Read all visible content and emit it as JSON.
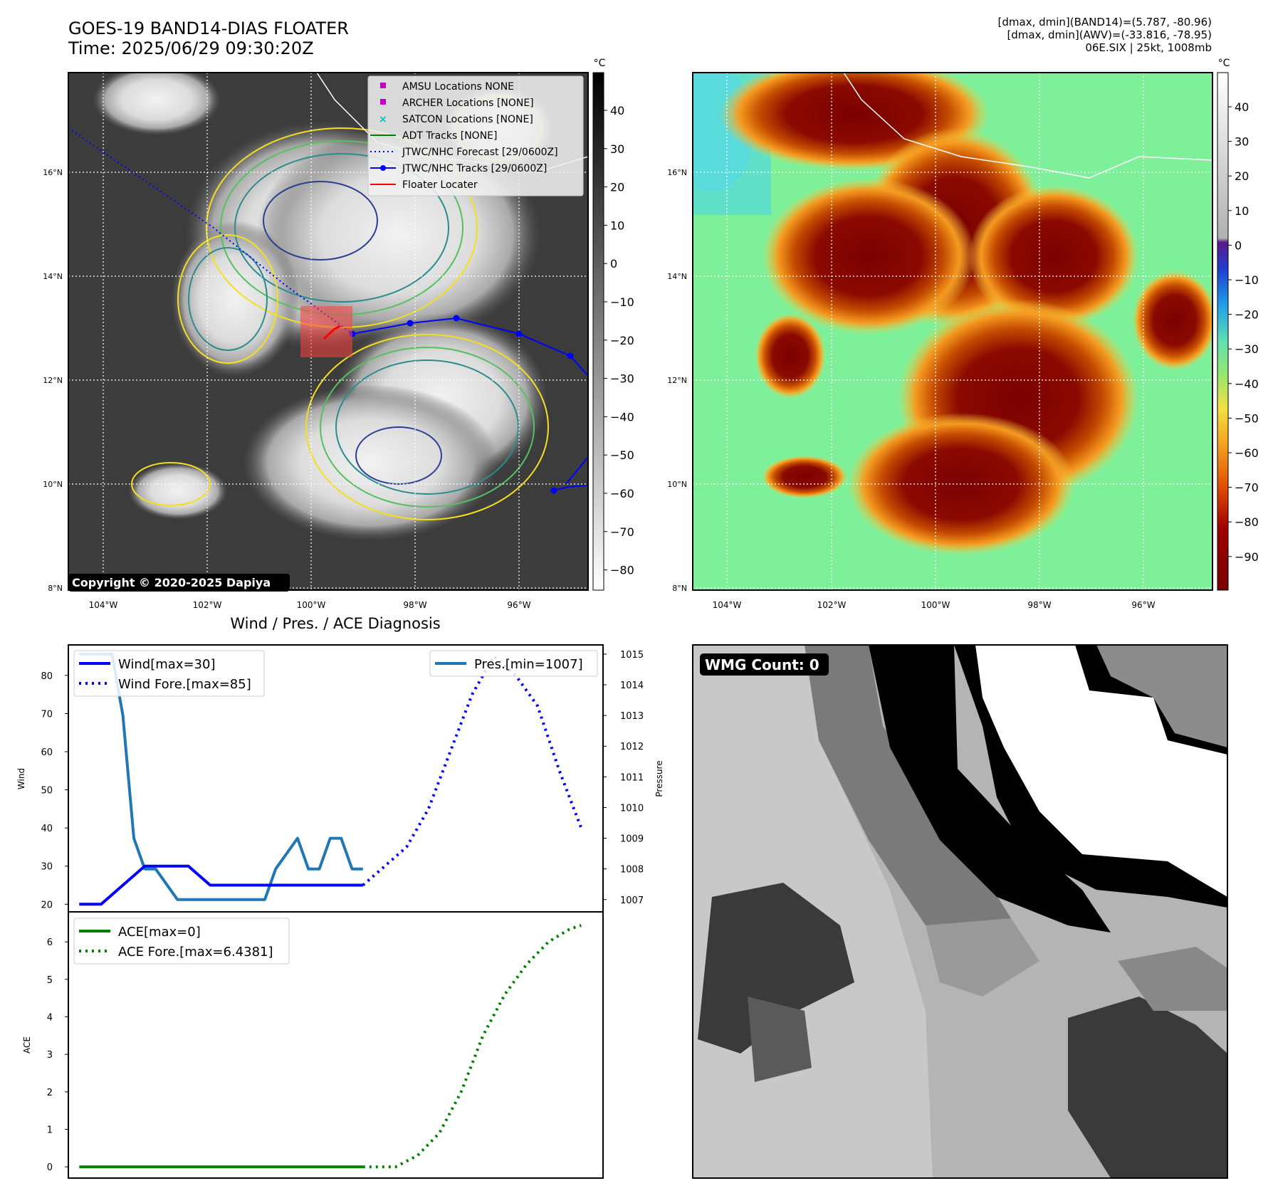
{
  "header": {
    "title_line1": "GOES-19 BAND14-DIAS FLOATER",
    "title_line2": "Time: 2025/06/29 09:30:20Z",
    "info_line1": "[dmax, dmin](BAND14)=(5.787, -80.96)",
    "info_line2": "[dmax, dmin](AWV)=(-33.816, -78.95)",
    "info_line3": "06E.SIX | 25kt, 1008mb"
  },
  "maps": {
    "lon_ticks": [
      "104°W",
      "102°W",
      "100°W",
      "98°W",
      "96°W"
    ],
    "lat_ticks": [
      "16°N",
      "14°N",
      "12°N",
      "10°N",
      "8°N"
    ],
    "copyright": "Copyright © 2020-2025 Dapiya",
    "legend": [
      {
        "label": "AMSU Locations NONE",
        "marker": "square",
        "color": "#c000c0"
      },
      {
        "label": "ARCHER Locations [NONE]",
        "marker": "square",
        "color": "#c000c0"
      },
      {
        "label": "SATCON Locations [NONE]",
        "marker": "x",
        "color": "#00bfbf"
      },
      {
        "label": "ADT Tracks [NONE]",
        "marker": "line",
        "color": "#008000"
      },
      {
        "label": "JTWC/NHC Forecast [29/0600Z]",
        "marker": "dotted",
        "color": "#0000ff"
      },
      {
        "label": "JTWC/NHC Tracks [29/0600Z]",
        "marker": "line-dot",
        "color": "#0000ff"
      },
      {
        "label": "Floater Locater",
        "marker": "line",
        "color": "#ff0000"
      }
    ],
    "colorbar_unit": "°C",
    "colorbar_gray_ticks": [
      "40",
      "30",
      "20",
      "10",
      "0",
      "−10",
      "−20",
      "−30",
      "−40",
      "−50",
      "−60",
      "−70",
      "−80"
    ],
    "colorbar_color_ticks": [
      "40",
      "30",
      "20",
      "10",
      "0",
      "−10",
      "−20",
      "−30",
      "−40",
      "−50",
      "−60",
      "−70",
      "−80",
      "−90"
    ]
  },
  "diagnosis": {
    "title": "Wind / Pres. / ACE Diagnosis",
    "wind_ylabel": "Wind",
    "pres_ylabel": "Pressure",
    "ace_ylabel": "ACE",
    "legend_wind": "Wind[max=30]",
    "legend_wind_fore": "Wind Fore.[max=85]",
    "legend_pres": "Pres.[min=1007]",
    "legend_ace": "ACE[max=0]",
    "legend_ace_fore": "ACE Fore.[max=6.4381]"
  },
  "wmg": {
    "label": "WMG Count: 0"
  },
  "chart_data": [
    {
      "type": "line",
      "title": "Wind / Pres. / ACE Diagnosis",
      "ylabel": "Wind",
      "ylim": [
        18,
        88
      ],
      "y_ticks": [
        20,
        30,
        40,
        50,
        60,
        70,
        80
      ],
      "xlim": [
        -1,
        48
      ],
      "colors": {
        "wind": "#0000ff",
        "pressure": "#1f77b4"
      },
      "series": [
        {
          "name": "Wind[max=30]",
          "style": "solid",
          "x": [
            0,
            2,
            4,
            6,
            8,
            10,
            12,
            14,
            16,
            18,
            20,
            22,
            24,
            26
          ],
          "values": [
            20,
            20,
            25,
            30,
            30,
            30,
            25,
            25,
            25,
            25,
            25,
            25,
            25,
            25
          ]
        },
        {
          "name": "Wind Fore.[max=85]",
          "style": "dotted",
          "x": [
            26,
            28,
            30,
            32,
            34,
            36,
            38,
            40,
            42,
            44,
            46
          ],
          "values": [
            25,
            30,
            35,
            45,
            60,
            75,
            85,
            80,
            72,
            55,
            40
          ]
        }
      ]
    },
    {
      "type": "line",
      "ylabel": "Pressure",
      "ylim": [
        1006.6,
        1015.3
      ],
      "y_ticks": [
        1007,
        1008,
        1009,
        1010,
        1011,
        1012,
        1013,
        1014,
        1015
      ],
      "xlim": [
        -1,
        48
      ],
      "series": [
        {
          "name": "Pres.[min=1007]",
          "style": "solid",
          "x": [
            0,
            3,
            4,
            5,
            6,
            7,
            9,
            11,
            13,
            15,
            17,
            18,
            20,
            21,
            22,
            23,
            24,
            25,
            26
          ],
          "values": [
            1015,
            1015,
            1013,
            1009,
            1008,
            1008,
            1007,
            1007,
            1007,
            1007,
            1007,
            1008,
            1009,
            1008,
            1008,
            1009,
            1009,
            1008,
            1008
          ]
        }
      ]
    },
    {
      "type": "line",
      "ylabel": "ACE",
      "ylim": [
        -0.3,
        6.8
      ],
      "y_ticks": [
        0,
        1,
        2,
        3,
        4,
        5,
        6
      ],
      "xlim": [
        -1,
        48
      ],
      "colors": {
        "ace": "#008000"
      },
      "series": [
        {
          "name": "ACE[max=0]",
          "style": "solid",
          "x": [
            0,
            26
          ],
          "values": [
            0,
            0
          ]
        },
        {
          "name": "ACE Fore.[max=6.4381]",
          "style": "dotted",
          "x": [
            26,
            29,
            31,
            33,
            35,
            37,
            39,
            41,
            43,
            45,
            46
          ],
          "values": [
            0,
            0,
            0.3,
            0.9,
            2.0,
            3.5,
            4.6,
            5.4,
            6.0,
            6.35,
            6.4381
          ]
        }
      ]
    }
  ]
}
